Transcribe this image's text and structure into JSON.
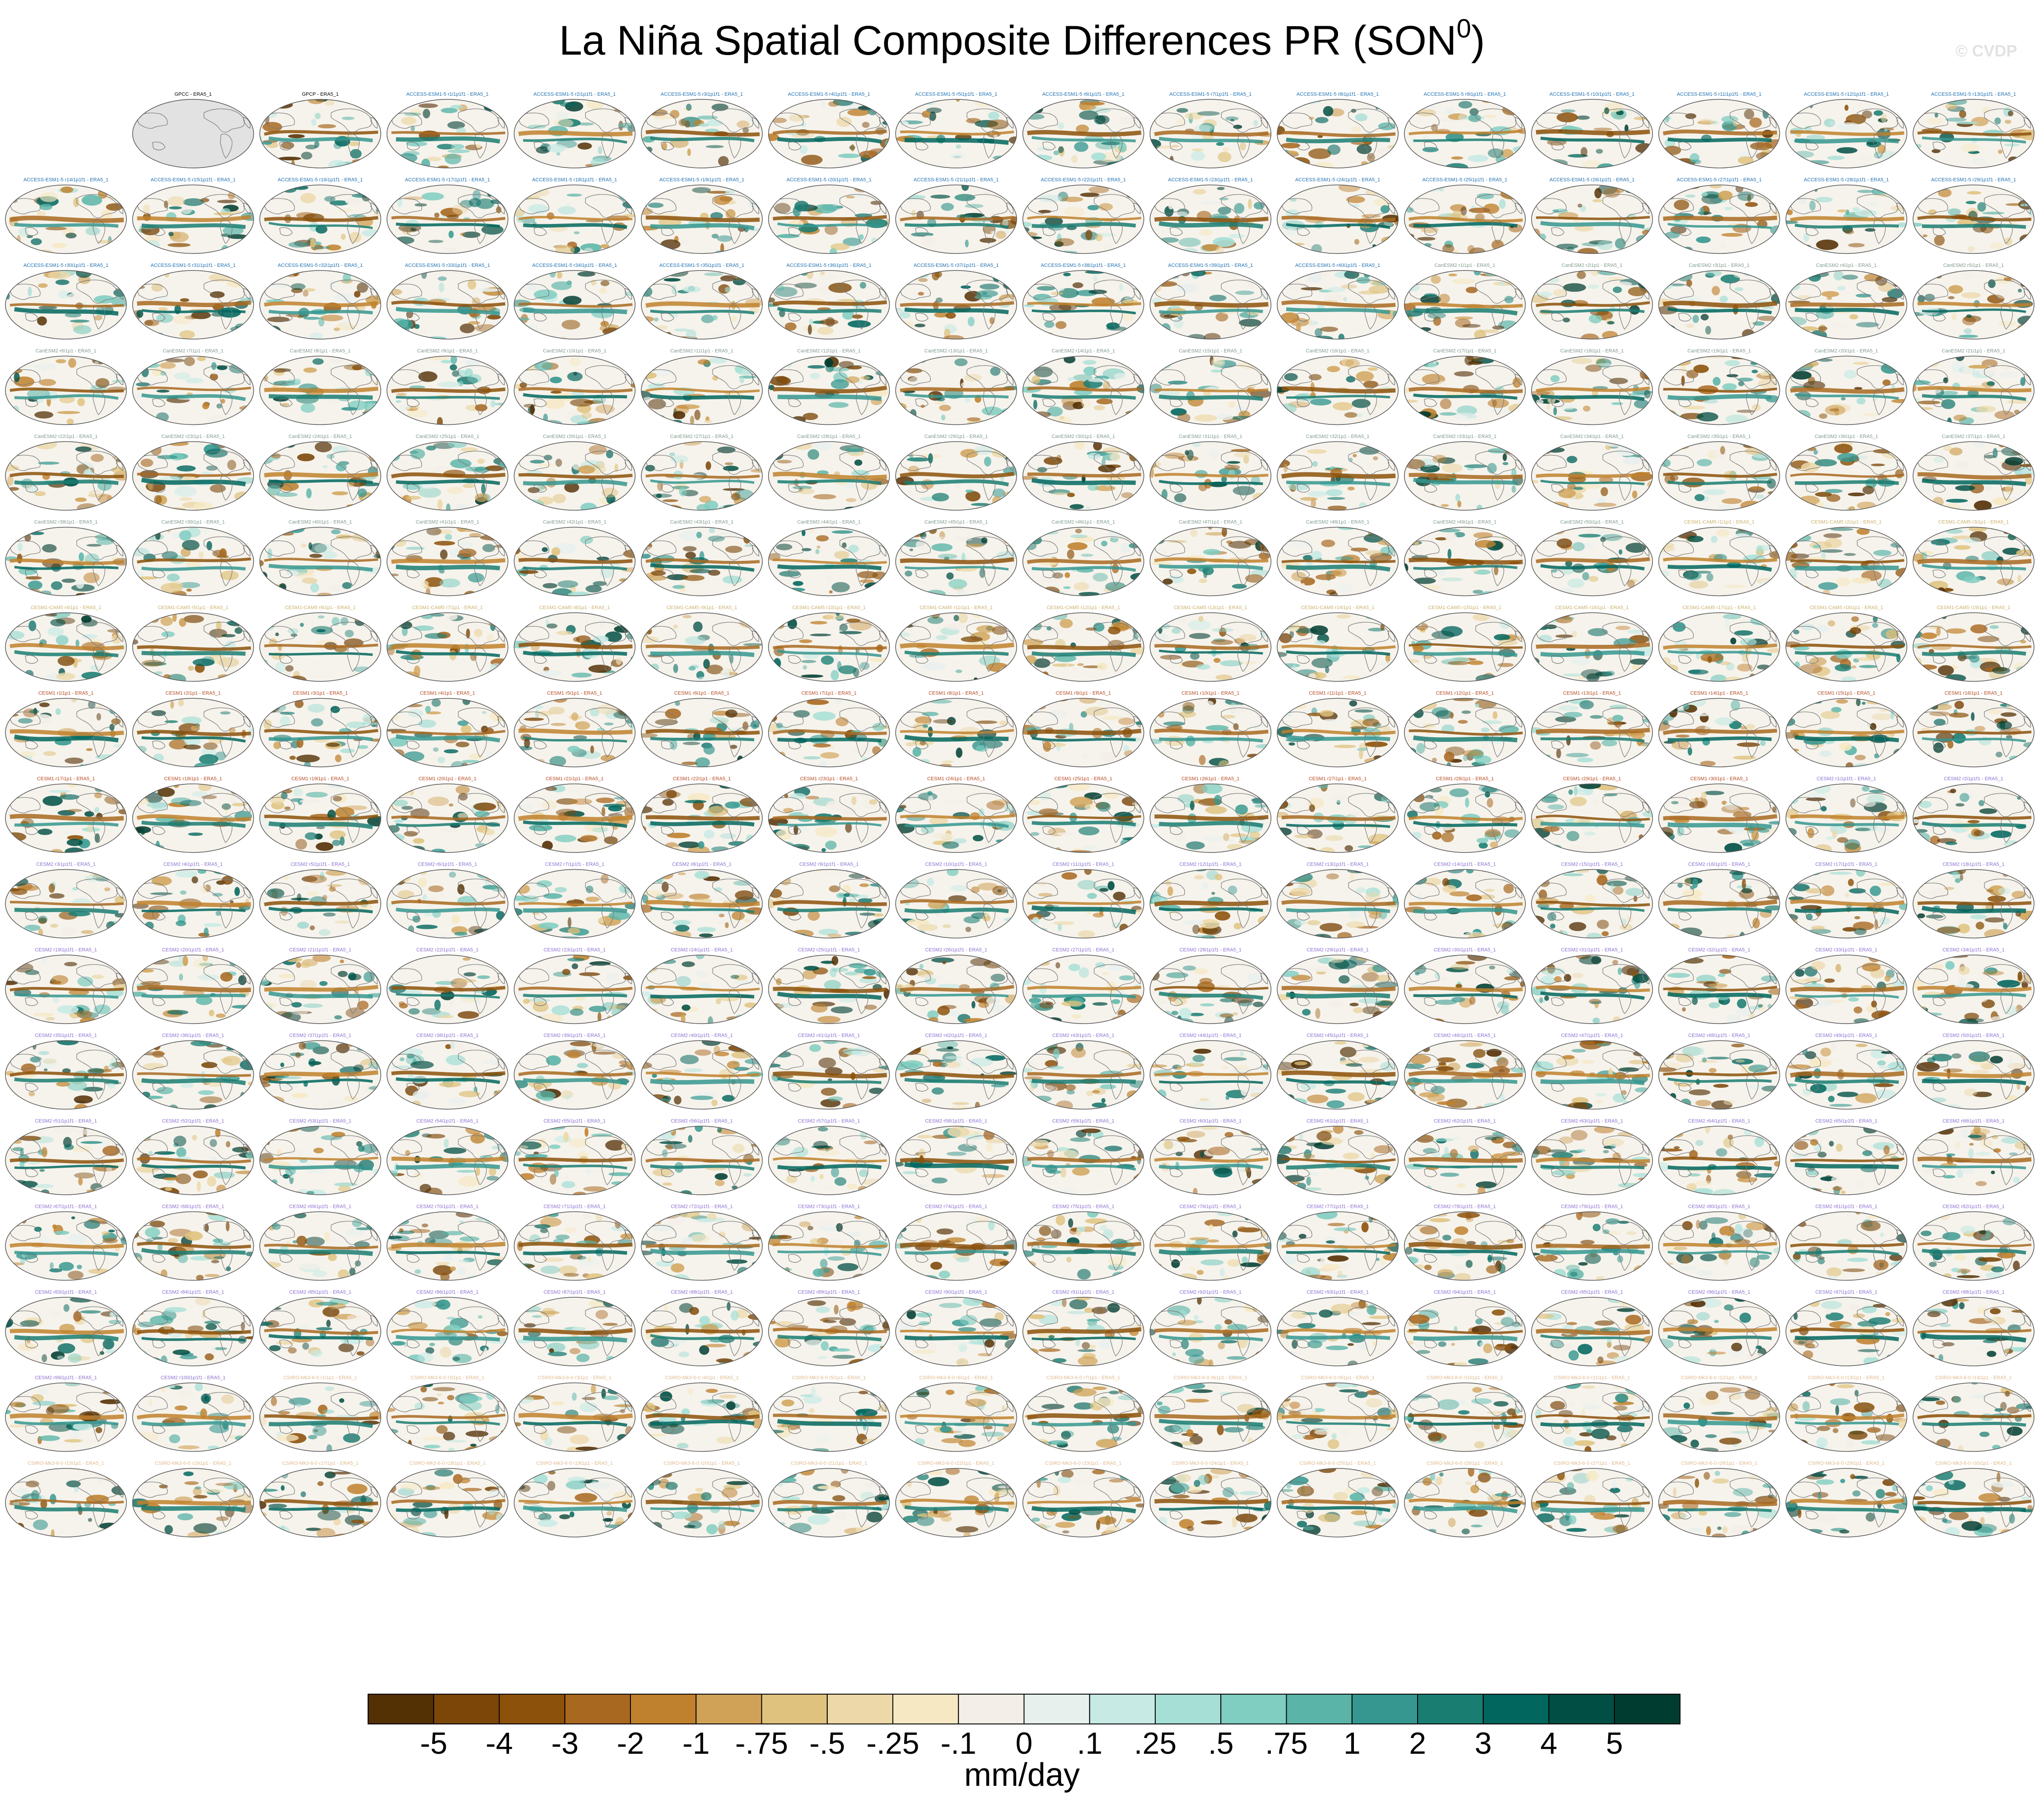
{
  "title": "La Niña Spatial Composite Differences PR (SON",
  "title_superscript": "0",
  "watermark": "© CVDP",
  "chart_data": {
    "type": "heatmap",
    "panel_grid": {
      "rows": 18,
      "cols": 16,
      "empty_leading_cells": 1
    },
    "panel_labels": [
      "GPCC - ERA5_1",
      "GPCP - ERA5_1",
      "ACCESS-ESM1-5 r1i1p1f1 - ERA5_1",
      "ACCESS-ESM1-5 r2i1p1f1 - ERA5_1",
      "ACCESS-ESM1-5 r3i1p1f1 - ERA5_1",
      "ACCESS-ESM1-5 r4i1p1f1 - ERA5_1",
      "ACCESS-ESM1-5 r5i1p1f1 - ERA5_1",
      "ACCESS-ESM1-5 r6i1p1f1 - ERA5_1",
      "ACCESS-ESM1-5 r7i1p1f1 - ERA5_1",
      "ACCESS-ESM1-5 r8i1p1f1 - ERA5_1",
      "ACCESS-ESM1-5 r9i1p1f1 - ERA5_1",
      "ACCESS-ESM1-5 r10i1p1f1 - ERA5_1",
      "ACCESS-ESM1-5 r11i1p1f1 - ERA5_1",
      "ACCESS-ESM1-5 r12i1p1f1 - ERA5_1",
      "ACCESS-ESM1-5 r13i1p1f1 - ERA5_1",
      "ACCESS-ESM1-5 r14i1p1f1 - ERA5_1",
      "ACCESS-ESM1-5 r15i1p1f1 - ERA5_1",
      "ACCESS-ESM1-5 r16i1p1f1 - ERA5_1",
      "ACCESS-ESM1-5 r17i1p1f1 - ERA5_1",
      "ACCESS-ESM1-5 r18i1p1f1 - ERA5_1",
      "ACCESS-ESM1-5 r19i1p1f1 - ERA5_1",
      "ACCESS-ESM1-5 r20i1p1f1 - ERA5_1",
      "ACCESS-ESM1-5 r21i1p1f1 - ERA5_1",
      "ACCESS-ESM1-5 r22i1p1f1 - ERA5_1",
      "ACCESS-ESM1-5 r23i1p1f1 - ERA5_1",
      "ACCESS-ESM1-5 r24i1p1f1 - ERA5_1",
      "ACCESS-ESM1-5 r25i1p1f1 - ERA5_1",
      "ACCESS-ESM1-5 r26i1p1f1 - ERA5_1",
      "ACCESS-ESM1-5 r27i1p1f1 - ERA5_1",
      "ACCESS-ESM1-5 r28i1p1f1 - ERA5_1",
      "ACCESS-ESM1-5 r29i1p1f1 - ERA5_1",
      "ACCESS-ESM1-5 r30i1p1f1 - ERA5_1",
      "ACCESS-ESM1-5 r31i1p1f1 - ERA5_1",
      "ACCESS-ESM1-5 r32i1p1f1 - ERA5_1",
      "ACCESS-ESM1-5 r33i1p1f1 - ERA5_1",
      "ACCESS-ESM1-5 r34i1p1f1 - ERA5_1",
      "ACCESS-ESM1-5 r35i1p1f1 - ERA5_1",
      "ACCESS-ESM1-5 r36i1p1f1 - ERA5_1",
      "ACCESS-ESM1-5 r37i1p1f1 - ERA5_1",
      "ACCESS-ESM1-5 r38i1p1f1 - ERA5_1",
      "ACCESS-ESM1-5 r39i1p1f1 - ERA5_1",
      "ACCESS-ESM1-5 r40i1p1f1 - ERA5_1",
      "CanESM2 r1i1p1 - ERA5_1",
      "CanESM2 r2i1p1 - ERA5_1",
      "CanESM2 r3i1p1 - ERA5_1",
      "CanESM2 r4i1p1 - ERA5_1",
      "CanESM2 r5i1p1 - ERA5_1",
      "CanESM2 r6i1p1 - ERA5_1",
      "CanESM2 r7i1p1 - ERA5_1",
      "CanESM2 r8i1p1 - ERA5_1",
      "CanESM2 r9i1p1 - ERA5_1",
      "CanESM2 r10i1p1 - ERA5_1",
      "CanESM2 r11i1p1 - ERA5_1",
      "CanESM2 r12i1p1 - ERA5_1",
      "CanESM2 r13i1p1 - ERA5_1",
      "CanESM2 r14i1p1 - ERA5_1",
      "CanESM2 r15i1p1 - ERA5_1",
      "CanESM2 r16i1p1 - ERA5_1",
      "CanESM2 r17i1p1 - ERA5_1",
      "CanESM2 r18i1p1 - ERA5_1",
      "CanESM2 r19i1p1 - ERA5_1",
      "CanESM2 r20i1p1 - ERA5_1",
      "CanESM2 r21i1p1 - ERA5_1",
      "CanESM2 r22i1p1 - ERA5_1",
      "CanESM2 r23i1p1 - ERA5_1",
      "CanESM2 r24i1p1 - ERA5_1",
      "CanESM2 r25i1p1 - ERA5_1",
      "CanESM2 r26i1p1 - ERA5_1",
      "CanESM2 r27i1p1 - ERA5_1",
      "CanESM2 r28i1p1 - ERA5_1",
      "CanESM2 r29i1p1 - ERA5_1",
      "CanESM2 r30i1p1 - ERA5_1",
      "CanESM2 r31i1p1 - ERA5_1",
      "CanESM2 r32i1p1 - ERA5_1",
      "CanESM2 r33i1p1 - ERA5_1",
      "CanESM2 r34i1p1 - ERA5_1",
      "CanESM2 r35i1p1 - ERA5_1",
      "CanESM2 r36i1p1 - ERA5_1",
      "CanESM2 r37i1p1 - ERA5_1",
      "CanESM2 r38i1p1 - ERA5_1",
      "CanESM2 r39i1p1 - ERA5_1",
      "CanESM2 r40i1p1 - ERA5_1",
      "CanESM2 r41i1p1 - ERA5_1",
      "CanESM2 r42i1p1 - ERA5_1",
      "CanESM2 r43i1p1 - ERA5_1",
      "CanESM2 r44i1p1 - ERA5_1",
      "CanESM2 r45i1p1 - ERA5_1",
      "CanESM2 r46i1p1 - ERA5_1",
      "CanESM2 r47i1p1 - ERA5_1",
      "CanESM2 r48i1p1 - ERA5_1",
      "CanESM2 r49i1p1 - ERA5_1",
      "CanESM2 r50i1p1 - ERA5_1",
      "CESM1-CAM5 r1i1p1 - ERA5_1",
      "CESM1-CAM5 r2i1p1 - ERA5_1",
      "CESM1-CAM5 r3i1p1 - ERA5_1",
      "CESM1-CAM5 r4i1p1 - ERA5_1",
      "CESM1-CAM5 r5i1p1 - ERA5_1",
      "CESM1-CAM5 r6i1p1 - ERA5_1",
      "CESM1-CAM5 r7i1p1 - ERA5_1",
      "CESM1-CAM5 r8i1p1 - ERA5_1",
      "CESM1-CAM5 r9i1p1 - ERA5_1",
      "CESM1-CAM5 r10i1p1 - ERA5_1",
      "CESM1-CAM5 r11i1p1 - ERA5_1",
      "CESM1-CAM5 r12i1p1 - ERA5_1",
      "CESM1-CAM5 r13i1p1 - ERA5_1",
      "CESM1-CAM5 r14i1p1 - ERA5_1",
      "CESM1-CAM5 r15i1p1 - ERA5_1",
      "CESM1-CAM5 r16i1p1 - ERA5_1",
      "CESM1-CAM5 r17i1p1 - ERA5_1",
      "CESM1-CAM5 r18i1p1 - ERA5_1",
      "CESM1-CAM5 r19i1p1 - ERA5_1",
      "CESM1 r1i1p1 - ERA5_1",
      "CESM1 r2i1p1 - ERA5_1",
      "CESM1 r3i1p1 - ERA5_1",
      "CESM1 r4i1p1 - ERA5_1",
      "CESM1 r5i1p1 - ERA5_1",
      "CESM1 r6i1p1 - ERA5_1",
      "CESM1 r7i1p1 - ERA5_1",
      "CESM1 r8i1p1 - ERA5_1",
      "CESM1 r9i1p1 - ERA5_1",
      "CESM1 r10i1p1 - ERA5_1",
      "CESM1 r11i1p1 - ERA5_1",
      "CESM1 r12i1p1 - ERA5_1",
      "CESM1 r13i1p1 - ERA5_1",
      "CESM1 r14i1p1 - ERA5_1",
      "CESM1 r15i1p1 - ERA5_1",
      "CESM1 r16i1p1 - ERA5_1",
      "CESM1 r17i1p1 - ERA5_1",
      "CESM1 r18i1p1 - ERA5_1",
      "CESM1 r19i1p1 - ERA5_1",
      "CESM1 r20i1p1 - ERA5_1",
      "CESM1 r21i1p1 - ERA5_1",
      "CESM1 r22i1p1 - ERA5_1",
      "CESM1 r23i1p1 - ERA5_1",
      "CESM1 r24i1p1 - ERA5_1",
      "CESM1 r25i1p1 - ERA5_1",
      "CESM1 r26i1p1 - ERA5_1",
      "CESM1 r27i1p1 - ERA5_1",
      "CESM1 r28i1p1 - ERA5_1",
      "CESM1 r29i1p1 - ERA5_1",
      "CESM1 r30i1p1 - ERA5_1",
      "CESM2 r1i1p1f1 - ERA5_1",
      "CESM2 r2i1p1f1 - ERA5_1",
      "CESM2 r3i1p1f1 - ERA5_1",
      "CESM2 r4i1p1f1 - ERA5_1",
      "CESM2 r5i1p1f1 - ERA5_1",
      "CESM2 r6i1p1f1 - ERA5_1",
      "CESM2 r7i1p1f1 - ERA5_1",
      "CESM2 r8i1p1f1 - ERA5_1",
      "CESM2 r9i1p1f1 - ERA5_1",
      "CESM2 r10i1p1f1 - ERA5_1",
      "CESM2 r11i1p1f1 - ERA5_1",
      "CESM2 r12i1p1f1 - ERA5_1",
      "CESM2 r13i1p1f1 - ERA5_1",
      "CESM2 r14i1p1f1 - ERA5_1",
      "CESM2 r15i1p1f1 - ERA5_1",
      "CESM2 r16i1p1f1 - ERA5_1",
      "CESM2 r17i1p1f1 - ERA5_1",
      "CESM2 r18i1p1f1 - ERA5_1",
      "CESM2 r19i1p1f1 - ERA5_1",
      "CESM2 r20i1p1f1 - ERA5_1",
      "CESM2 r21i1p1f1 - ERA5_1",
      "CESM2 r22i1p1f1 - ERA5_1",
      "CESM2 r23i1p1f1 - ERA5_1",
      "CESM2 r24i1p1f1 - ERA5_1",
      "CESM2 r25i1p1f1 - ERA5_1",
      "CESM2 r26i1p1f1 - ERA5_1",
      "CESM2 r27i1p1f1 - ERA5_1",
      "CESM2 r28i1p1f1 - ERA5_1",
      "CESM2 r29i1p1f1 - ERA5_1",
      "CESM2 r30i1p1f1 - ERA5_1",
      "CESM2 r31i1p1f1 - ERA5_1",
      "CESM2 r32i1p1f1 - ERA5_1",
      "CESM2 r33i1p1f1 - ERA5_1",
      "CESM2 r34i1p1f1 - ERA5_1",
      "CESM2 r35i1p1f1 - ERA5_1",
      "CESM2 r36i1p1f1 - ERA5_1",
      "CESM2 r37i1p1f1 - ERA5_1",
      "CESM2 r38i1p1f1 - ERA5_1",
      "CESM2 r39i1p1f1 - ERA5_1",
      "CESM2 r40i1p1f1 - ERA5_1",
      "CESM2 r41i1p1f1 - ERA5_1",
      "CESM2 r42i1p1f1 - ERA5_1",
      "CESM2 r43i1p1f1 - ERA5_1",
      "CESM2 r44i1p1f1 - ERA5_1",
      "CESM2 r45i1p1f1 - ERA5_1",
      "CESM2 r46i1p1f1 - ERA5_1",
      "CESM2 r47i1p1f1 - ERA5_1",
      "CESM2 r48i1p1f1 - ERA5_1",
      "CESM2 r49i1p1f1 - ERA5_1",
      "CESM2 r50i1p1f1 - ERA5_1",
      "CESM2 r51i1p1f1 - ERA5_1",
      "CESM2 r52i1p1f1 - ERA5_1",
      "CESM2 r53i1p1f1 - ERA5_1",
      "CESM2 r54i1p1f1 - ERA5_1",
      "CESM2 r55i1p1f1 - ERA5_1",
      "CESM2 r56i1p1f1 - ERA5_1",
      "CESM2 r57i1p1f1 - ERA5_1",
      "CESM2 r58i1p1f1 - ERA5_1",
      "CESM2 r59i1p1f1 - ERA5_1",
      "CESM2 r60i1p1f1 - ERA5_1",
      "CESM2 r61i1p1f1 - ERA5_1",
      "CESM2 r62i1p1f1 - ERA5_1",
      "CESM2 r63i1p1f1 - ERA5_1",
      "CESM2 r64i1p1f1 - ERA5_1",
      "CESM2 r65i1p1f1 - ERA5_1",
      "CESM2 r66i1p1f1 - ERA5_1",
      "CESM2 r67i1p1f1 - ERA5_1",
      "CESM2 r68i1p1f1 - ERA5_1",
      "CESM2 r69i1p1f1 - ERA5_1",
      "CESM2 r70i1p1f1 - ERA5_1",
      "CESM2 r71i1p1f1 - ERA5_1",
      "CESM2 r72i1p1f1 - ERA5_1",
      "CESM2 r73i1p1f1 - ERA5_1",
      "CESM2 r74i1p1f1 - ERA5_1",
      "CESM2 r75i1p1f1 - ERA5_1",
      "CESM2 r76i1p1f1 - ERA5_1",
      "CESM2 r77i1p1f1 - ERA5_1",
      "CESM2 r78i1p1f1 - ERA5_1",
      "CESM2 r79i1p1f1 - ERA5_1",
      "CESM2 r80i1p1f1 - ERA5_1",
      "CESM2 r81i1p1f1 - ERA5_1",
      "CESM2 r82i1p1f1 - ERA5_1",
      "CESM2 r83i1p1f1 - ERA5_1",
      "CESM2 r84i1p1f1 - ERA5_1",
      "CESM2 r85i1p1f1 - ERA5_1",
      "CESM2 r86i1p1f1 - ERA5_1",
      "CESM2 r87i1p1f1 - ERA5_1",
      "CESM2 r88i1p1f1 - ERA5_1",
      "CESM2 r89i1p1f1 - ERA5_1",
      "CESM2 r90i1p1f1 - ERA5_1",
      "CESM2 r91i1p1f1 - ERA5_1",
      "CESM2 r92i1p1f1 - ERA5_1",
      "CESM2 r93i1p1f1 - ERA5_1",
      "CESM2 r94i1p1f1 - ERA5_1",
      "CESM2 r95i1p1f1 - ERA5_1",
      "CESM2 r96i1p1f1 - ERA5_1",
      "CESM2 r97i1p1f1 - ERA5_1",
      "CESM2 r98i1p1f1 - ERA5_1",
      "CESM2 r99i1p1f1 - ERA5_1",
      "CESM2 r100i1p1f1 - ERA5_1",
      "CSIRO-Mk3-6-0 r1i1p1 - ERA5_1",
      "CSIRO-Mk3-6-0 r2i1p1 - ERA5_1",
      "CSIRO-Mk3-6-0 r3i1p1 - ERA5_1",
      "CSIRO-Mk3-6-0 r4i1p1 - ERA5_1",
      "CSIRO-Mk3-6-0 r5i1p1 - ERA5_1",
      "CSIRO-Mk3-6-0 r6i1p1 - ERA5_1",
      "CSIRO-Mk3-6-0 r7i1p1 - ERA5_1",
      "CSIRO-Mk3-6-0 r8i1p1 - ERA5_1",
      "CSIRO-Mk3-6-0 r9i1p1 - ERA5_1",
      "CSIRO-Mk3-6-0 r10i1p1 - ERA5_1",
      "CSIRO-Mk3-6-0 r11i1p1 - ERA5_1",
      "CSIRO-Mk3-6-0 r12i1p1 - ERA5_1",
      "CSIRO-Mk3-6-0 r13i1p1 - ERA5_1",
      "CSIRO-Mk3-6-0 r14i1p1 - ERA5_1",
      "CSIRO-Mk3-6-0 r15i1p1 - ERA5_1",
      "CSIRO-Mk3-6-0 r16i1p1 - ERA5_1",
      "CSIRO-Mk3-6-0 r17i1p1 - ERA5_1",
      "CSIRO-Mk3-6-0 r18i1p1 - ERA5_1",
      "CSIRO-Mk3-6-0 r19i1p1 - ERA5_1",
      "CSIRO-Mk3-6-0 r20i1p1 - ERA5_1",
      "CSIRO-Mk3-6-0 r21i1p1 - ERA5_1",
      "CSIRO-Mk3-6-0 r22i1p1 - ERA5_1",
      "CSIRO-Mk3-6-0 r23i1p1 - ERA5_1",
      "CSIRO-Mk3-6-0 r24i1p1 - ERA5_1",
      "CSIRO-Mk3-6-0 r25i1p1 - ERA5_1",
      "CSIRO-Mk3-6-0 r26i1p1 - ERA5_1",
      "CSIRO-Mk3-6-0 r27i1p1 - ERA5_1",
      "CSIRO-Mk3-6-0 r28i1p1 - ERA5_1",
      "CSIRO-Mk3-6-0 r29i1p1 - ERA5_1",
      "CSIRO-Mk3-6-0 r30i1p1 - ERA5_1"
    ],
    "label_colors": {
      "obs": "#000000",
      "ACCESS": "#1e6fb0",
      "CanESM2": "#7f9a8a",
      "CESM1-CAM5": "#c9b06a",
      "CESM1": "#b5481f",
      "CESM2": "#8a6fd0",
      "CSIRO": "#e0b98c"
    },
    "first_panel_missing_data": true,
    "colorbar": {
      "unit": "mm/day",
      "levels": [
        "-5",
        "-4",
        "-3",
        "-2",
        "-1",
        "-.75",
        "-.5",
        "-.25",
        "-.1",
        "0",
        ".1",
        ".25",
        ".5",
        ".75",
        "1",
        "2",
        "3",
        "4",
        "5"
      ],
      "colors": [
        "#543005",
        "#7b4607",
        "#8c510a",
        "#a86820",
        "#bf812d",
        "#d0a257",
        "#dfc27d",
        "#ecd8a8",
        "#f6e8c3",
        "#f3efe8",
        "#e8f0ee",
        "#c7eae5",
        "#a6dfd6",
        "#80cdc1",
        "#5ab4a8",
        "#35978f",
        "#1a7d72",
        "#01665e",
        "#014f44",
        "#003c30"
      ]
    },
    "xlabel": "",
    "ylabel": ""
  }
}
